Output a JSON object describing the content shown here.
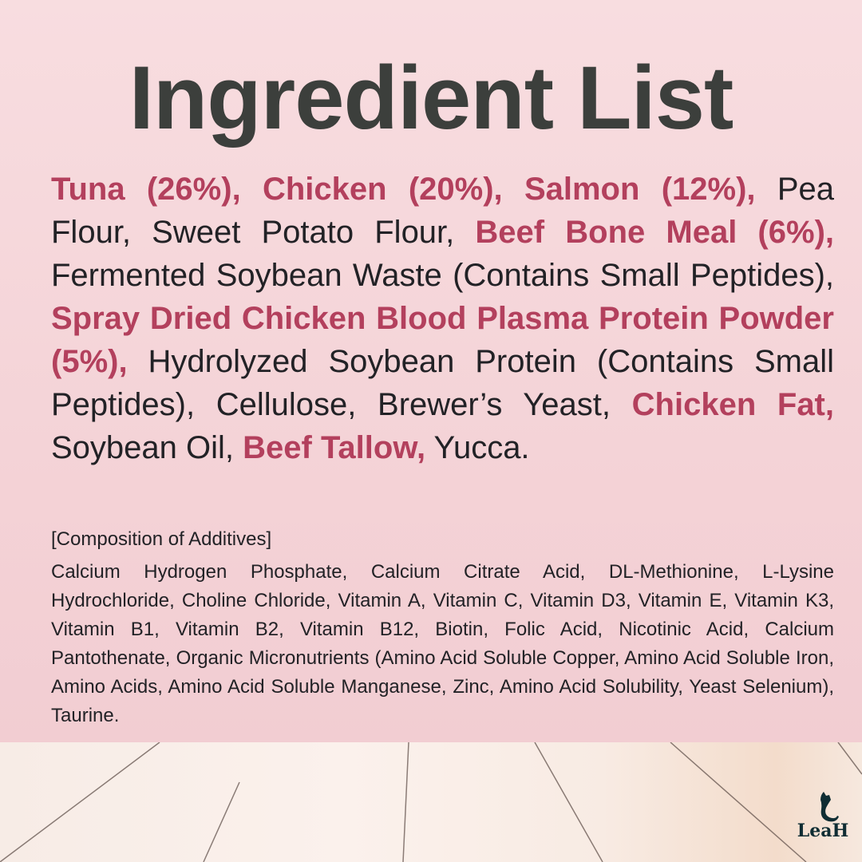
{
  "title": "Ingredient List",
  "ingredients": [
    {
      "text": "Tuna (26%), Chicken (20%), Salmon (12%),",
      "bold": true
    },
    {
      "text": " Pea Flour, Sweet Potato Flour, ",
      "bold": false
    },
    {
      "text": "Beef Bone Meal (6%),",
      "bold": true
    },
    {
      "text": " Fermented Soybean Waste (Contains Small Peptides), ",
      "bold": false
    },
    {
      "text": "Spray Dried Chicken Blood Plasma Protein Powder (5%),",
      "bold": true
    },
    {
      "text": " Hydrolyzed Soybean Protein (Contains Small Peptides), Cellulose, Brewer’s Yeast, ",
      "bold": false
    },
    {
      "text": "Chicken Fat,",
      "bold": true
    },
    {
      "text": " Soybean Oil, ",
      "bold": false
    },
    {
      "text": "Beef Tallow,",
      "bold": true
    },
    {
      "text": " Yucca.",
      "bold": false
    }
  ],
  "additives_title": "[Composition of Additives]",
  "additives": "Calcium Hydrogen Phosphate, Calcium Citrate Acid, DL-Methionine, L-Lysine Hydrochloride, Choline Chloride, Vitamin A, Vitamin C, Vitamin D3, Vitamin E, Vitamin K3, Vitamin B1, Vitamin B2, Vitamin B12, Biotin, Folic Acid, Nicotinic Acid, Calcium Pantothenate, Organic Micronutrients (Amino Acid Soluble Copper, Amino Acid Soluble Iron, Amino Acids, Amino Acid Soluble Manganese, Zinc, Amino Acid Solubility, Yeast Selenium), Taurine.",
  "logo": {
    "name": "LeaH"
  },
  "colors": {
    "highlight": "#b3405d",
    "title": "#3c3f3c",
    "background": "#f5d6da"
  }
}
